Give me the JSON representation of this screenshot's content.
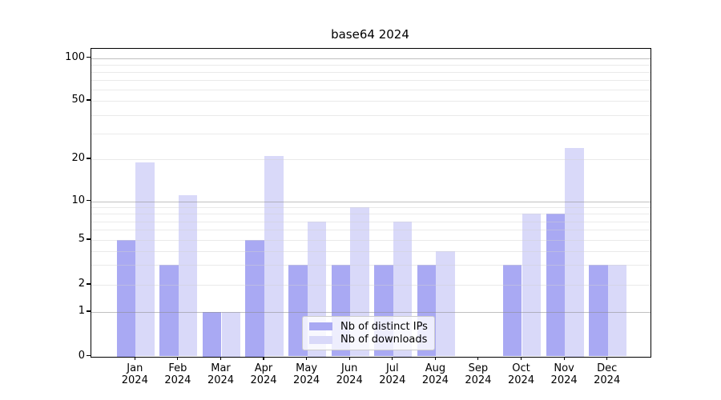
{
  "title": "base64 2024",
  "chart_data": {
    "type": "bar",
    "title": "base64 2024",
    "categories": [
      "Jan 2024",
      "Feb 2024",
      "Mar 2024",
      "Apr 2024",
      "May 2024",
      "Jun 2024",
      "Jul 2024",
      "Aug 2024",
      "Sep 2024",
      "Oct 2024",
      "Nov 2024",
      "Dec 2024"
    ],
    "series": [
      {
        "name": "Nb of distinct IPs",
        "color": "#a9a9f3",
        "values": [
          5,
          3,
          1,
          5,
          3,
          3,
          3,
          3,
          0,
          3,
          8,
          3
        ]
      },
      {
        "name": "Nb of downloads",
        "color": "#d9d9f9",
        "values": [
          19,
          11,
          1,
          21,
          7,
          9,
          7,
          4,
          0,
          8,
          24,
          3
        ]
      }
    ],
    "xlabel": "",
    "ylabel": "",
    "yaxis": {
      "scale": "log-like with linear 0 segment",
      "tick_labels": [
        "0",
        "1",
        "2",
        "5",
        "10",
        "20",
        "50",
        "100"
      ],
      "tick_values": [
        0,
        1,
        2,
        5,
        10,
        20,
        50,
        100
      ],
      "major_gridline_values": [
        1,
        10,
        100
      ],
      "minor_gridline_values": [
        2,
        3,
        4,
        5,
        6,
        7,
        8,
        9,
        20,
        30,
        40,
        50,
        60,
        70,
        80,
        90
      ],
      "ylim": [
        0,
        117
      ]
    },
    "grid": true,
    "legend": {
      "position": "lower center",
      "entries": [
        "Nb of distinct IPs",
        "Nb of downloads"
      ]
    }
  }
}
